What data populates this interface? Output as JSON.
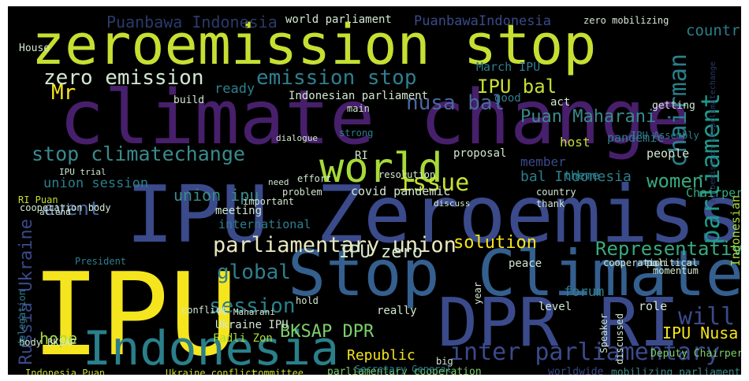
{
  "colors": {
    "background": "#000000",
    "purple": "#471f6b",
    "indigo": "#3a4a8a",
    "blue": "#345f8e",
    "teal": "#2a7f8a",
    "green": "#38a97f",
    "lime": "#9ed83a",
    "yellow": "#f4e51e"
  },
  "words": [
    {
      "text": "zeroemission stop",
      "color": "#c6df32"
    },
    {
      "text": "climate change",
      "color": "#471f6b"
    },
    {
      "text": "IPU Zeroemission",
      "color": "#3a4a8a"
    },
    {
      "text": "IPU",
      "color": "#f4e51e"
    },
    {
      "text": "Stop Climate",
      "color": "#345f8e"
    },
    {
      "text": "DPR RI",
      "color": "#3a4a8a"
    },
    {
      "text": "Indonesia",
      "color": "#2a7f8a"
    },
    {
      "text": "world",
      "color": "#a7da38"
    },
    {
      "text": "parliamentary union",
      "color": "#e8e7c0"
    },
    {
      "text": "stop climatechange",
      "color": "#3a8a8c"
    },
    {
      "text": "inter parliamentary",
      "color": "#3a4a8a"
    },
    {
      "text": "zero emission",
      "color": "#d2e8d0"
    },
    {
      "text": "emission stop",
      "color": "#2e7f8f"
    },
    {
      "text": "parliament",
      "color": "#1f9a8a"
    },
    {
      "text": "chairman",
      "color": "#2a7f8a"
    },
    {
      "text": "nusa bal",
      "color": "#4a68a0"
    },
    {
      "text": "IPU bal",
      "color": "#c6df32"
    },
    {
      "text": "Puan Maharani",
      "color": "#3a8a8c"
    },
    {
      "text": "global",
      "color": "#2e7f8f"
    },
    {
      "text": "session",
      "color": "#2a7f8a"
    },
    {
      "text": "BKSAP DPR",
      "color": "#7ccf6a"
    },
    {
      "text": "will",
      "color": "#3a4a8a"
    },
    {
      "text": "Representative",
      "color": "#38a97f"
    },
    {
      "text": "IPU zero",
      "color": "#d2e8d0"
    },
    {
      "text": "issue",
      "color": "#c6df32"
    },
    {
      "text": "event",
      "color": "#4a68a0"
    },
    {
      "text": "union ipu",
      "color": "#3a8a8c"
    },
    {
      "text": "Russia Ukraine",
      "color": "#3a4a8a"
    },
    {
      "text": "hope",
      "color": "#a7da38"
    },
    {
      "text": "women",
      "color": "#38a97f"
    },
    {
      "text": "bal Indonesia",
      "color": "#2a7f8a"
    },
    {
      "text": "Puanbawa Indonesia",
      "color": "#2a3a6a"
    },
    {
      "text": "PuanbawaIndonesia",
      "color": "#3a4a8a"
    },
    {
      "text": "world parliament",
      "color": "#d2e8d0"
    },
    {
      "text": "countries",
      "color": "#2a7f8a"
    },
    {
      "text": "Mr",
      "color": "#f4e51e"
    },
    {
      "text": "ready",
      "color": "#2e7f8f"
    },
    {
      "text": "Indonesian parliament",
      "color": "#d2e8d0"
    },
    {
      "text": "March IPU",
      "color": "#2e7f8f"
    },
    {
      "text": "solution",
      "color": "#f4e51e"
    },
    {
      "text": "IPU Nusa",
      "color": "#f4e51e"
    },
    {
      "text": "Republic",
      "color": "#f4e51e"
    },
    {
      "text": "Indonesian",
      "color": "#a7da38"
    },
    {
      "text": "zeroemission stopclimatechange",
      "color": "#2a3a6a"
    },
    {
      "text": "union session",
      "color": "#2a7f8a"
    },
    {
      "text": "covid pandemic",
      "color": "#d2e8d0"
    },
    {
      "text": "pandemic",
      "color": "#2e7f8f"
    },
    {
      "text": "host",
      "color": "#c6df32"
    },
    {
      "text": "good",
      "color": "#2e7f8f"
    },
    {
      "text": "act",
      "color": "#d2e8d0"
    },
    {
      "text": "theme",
      "color": "#2e7f8f"
    },
    {
      "text": "people",
      "color": "#d2e8d0"
    },
    {
      "text": "Chairperson",
      "color": "#38a97f"
    },
    {
      "text": "member",
      "color": "#3a4a8a"
    },
    {
      "text": "RI",
      "color": "#d2e8d0"
    },
    {
      "text": "meeting",
      "color": "#d2e8d0"
    },
    {
      "text": "international",
      "color": "#2e7f8f"
    },
    {
      "text": "Ukraine IPU",
      "color": "#d2e8d0"
    },
    {
      "text": "Fadli Zon",
      "color": "#a7da38"
    },
    {
      "text": "forum",
      "color": "#2e7f8f"
    },
    {
      "text": "role",
      "color": "#d2e8d0"
    },
    {
      "text": "level",
      "color": "#d2e8d0"
    },
    {
      "text": "peace",
      "color": "#d2e8d0"
    },
    {
      "text": "cooperation body",
      "color": "#d2e8d0"
    },
    {
      "text": "parliamentary cooperation",
      "color": "#7ccf6a"
    },
    {
      "text": "Deputy Chairperson",
      "color": "#7ccf6a"
    },
    {
      "text": "mobilizing parliament",
      "color": "#3a8a8c"
    },
    {
      "text": "worldwide",
      "color": "#3a4a8a"
    },
    {
      "text": "committee",
      "color": "#c6df32"
    },
    {
      "text": "Ukraine conflict",
      "color": "#c6df32"
    },
    {
      "text": "Indonesia Puan",
      "color": "#c6df32"
    },
    {
      "text": "body BKSAP",
      "color": "#d2e8d0"
    },
    {
      "text": "House",
      "color": "#d2e8d0"
    },
    {
      "text": "zero mobilizing",
      "color": "#d2e8d0"
    },
    {
      "text": "getting",
      "color": "#d2e8d0"
    },
    {
      "text": "attend",
      "color": "#d2e8d0"
    },
    {
      "text": "important",
      "color": "#d2e8d0"
    },
    {
      "text": "really",
      "color": "#d2e8d0"
    },
    {
      "text": "proposal",
      "color": "#d2e8d0"
    },
    {
      "text": "main",
      "color": "#d2e8d0"
    },
    {
      "text": "strong",
      "color": "#2e7f8f"
    },
    {
      "text": "build",
      "color": "#d2e8d0"
    },
    {
      "text": "President",
      "color": "#2e7f8f"
    },
    {
      "text": "delegation",
      "color": "#2e7f8f"
    },
    {
      "text": "discuss",
      "color": "#d2e8d0"
    },
    {
      "text": "IPU Assembly",
      "color": "#2e7f8f"
    },
    {
      "text": "IPU trial",
      "color": "#d2e8d0"
    },
    {
      "text": "RI Puan",
      "color": "#c6df32"
    },
    {
      "text": "Ms Maharani",
      "color": "#d2e8d0"
    },
    {
      "text": "hold",
      "color": "#d2e8d0"
    },
    {
      "text": "conflict",
      "color": "#d2e8d0"
    },
    {
      "text": "Secretary General",
      "color": "#2e7f8f"
    },
    {
      "text": "political",
      "color": "#d2e8d0"
    },
    {
      "text": "cooperation",
      "color": "#d2e8d0"
    },
    {
      "text": "momentum",
      "color": "#d2e8d0"
    },
    {
      "text": "big",
      "color": "#d2e8d0"
    },
    {
      "text": "year",
      "color": "#d2e8d0"
    },
    {
      "text": "thank",
      "color": "#d2e8d0"
    },
    {
      "text": "need",
      "color": "#d2e8d0"
    },
    {
      "text": "problem",
      "color": "#d2e8d0"
    },
    {
      "text": "effort",
      "color": "#d2e8d0"
    },
    {
      "text": "country",
      "color": "#d2e8d0"
    },
    {
      "text": "discussed",
      "color": "#d2e8d0"
    },
    {
      "text": "Speaker",
      "color": "#d2e8d0"
    },
    {
      "text": "resolution",
      "color": "#d2e8d0"
    },
    {
      "text": "dialogue",
      "color": "#d2e8d0"
    }
  ]
}
